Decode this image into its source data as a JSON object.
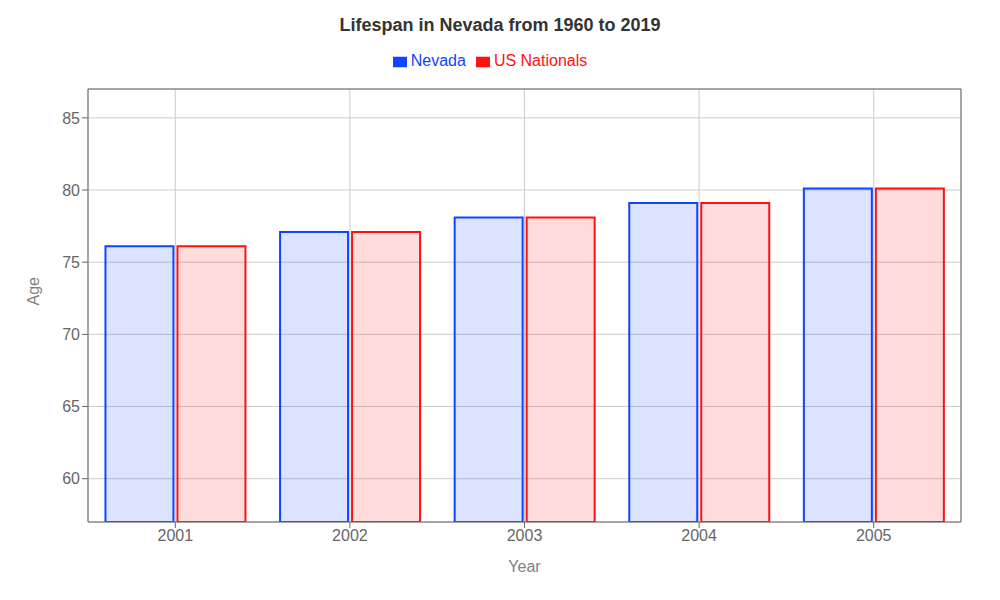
{
  "chart_data": {
    "type": "bar",
    "title": "Lifespan in Nevada from 1960 to 2019",
    "x_label": "Year",
    "y_label": "Age",
    "categories": [
      "2001",
      "2002",
      "2003",
      "2004",
      "2005"
    ],
    "series": [
      {
        "name": "Nevada",
        "color": "#1144ff",
        "values": [
          76.1,
          77.1,
          78.1,
          79.1,
          80.1
        ]
      },
      {
        "name": "US Nationals",
        "color": "#ff1111",
        "values": [
          76.1,
          77.1,
          78.1,
          79.1,
          80.1
        ]
      }
    ],
    "ylim": [
      57,
      87
    ],
    "yticks": [
      60,
      65,
      70,
      75,
      80,
      85
    ],
    "grid": true,
    "legend": "top"
  }
}
